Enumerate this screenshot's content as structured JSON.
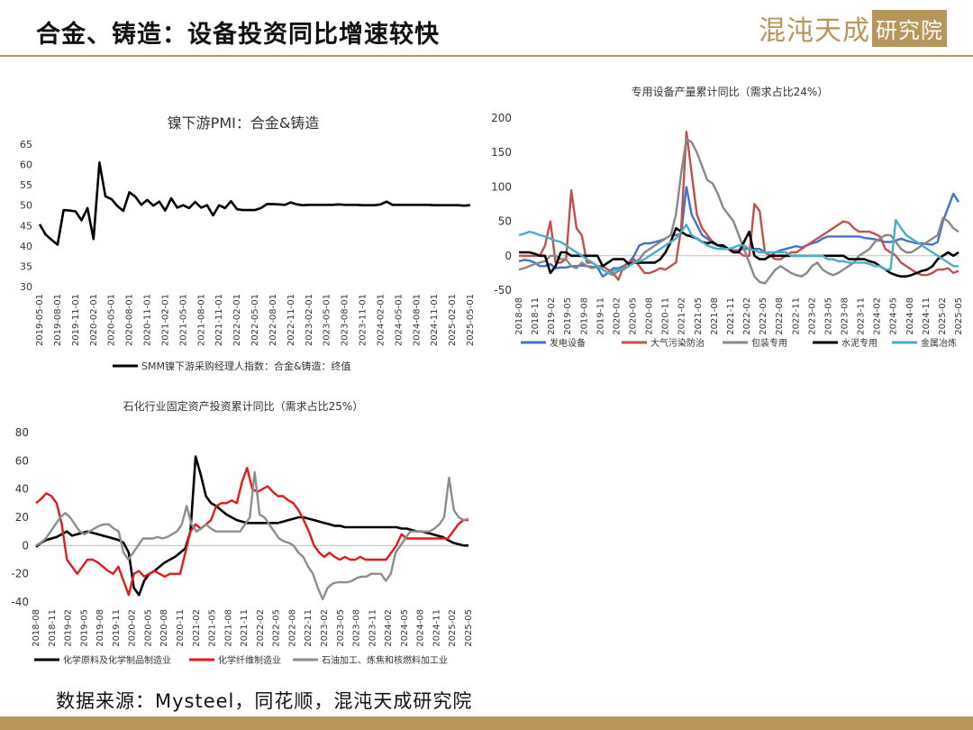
{
  "slide_title": "合金、铸造：设备投资同比增速较快",
  "logo": {
    "main": "混沌天成",
    "box": "研究院"
  },
  "source": "数据来源：Mysteel，同花顺，混沌天成研究院",
  "colors": {
    "gold": "#b8965a"
  },
  "chart_data": [
    {
      "type": "line",
      "title": "镍下游PMI：合金&铸造",
      "ylim": [
        30,
        65
      ],
      "yticks": [
        30,
        35,
        40,
        45,
        50,
        55,
        60,
        65
      ],
      "xticks": [
        "2019-05-01",
        "2019-08-01",
        "2019-11-01",
        "2020-02-01",
        "2020-05-01",
        "2020-08-01",
        "2020-11-01",
        "2021-02-01",
        "2021-05-01",
        "2021-08-01",
        "2021-11-01",
        "2022-02-01",
        "2022-05-01",
        "2022-08-01",
        "2022-11-01",
        "2023-02-01",
        "2023-05-01",
        "2023-08-01",
        "2023-11-01",
        "2024-02-01",
        "2024-05-01",
        "2024-08-01",
        "2024-11-01",
        "2025-02-01",
        "2025-05-01"
      ],
      "x_start": "2019-05",
      "x_end": "2025-05",
      "series": [
        {
          "name": "SMM镍下游采购经理人指数：合金&铸造：终值",
          "color": "#000000",
          "values": [
            45.3,
            42.8,
            41.5,
            40.3,
            48.8,
            48.7,
            48.5,
            46.3,
            49.3,
            41.7,
            60.5,
            52.2,
            51.5,
            49.8,
            48.6,
            53.2,
            52.1,
            50.1,
            51.3,
            49.9,
            50.9,
            48.7,
            51.7,
            49.4,
            50.0,
            49.3,
            50.8,
            49.4,
            50.0,
            47.5,
            50.0,
            49.3,
            51.0,
            49.0,
            48.8,
            48.8,
            48.8,
            49.3,
            50.3,
            50.3,
            50.2,
            50.1,
            50.7,
            50.2,
            50.0,
            50.1,
            50.1,
            50.1,
            50.1,
            50.1,
            50.2,
            50.1,
            50.1,
            50.1,
            50.0,
            50.0,
            50.0,
            50.2,
            50.9,
            50.1,
            50.1,
            50.1,
            50.1,
            50.1,
            50.1,
            50.1,
            50.0,
            50.0,
            50.0,
            50.0,
            50.0,
            49.9,
            50.0
          ]
        }
      ],
      "legend_position": "bottom"
    },
    {
      "type": "line",
      "title": "专用设备产量累计同比（需求占比24%）",
      "ylim": [
        -50,
        200
      ],
      "yticks": [
        -50,
        0,
        50,
        100,
        150,
        200
      ],
      "xticks": [
        "2018-08",
        "2018-11",
        "2019-02",
        "2019-05",
        "2019-08",
        "2019-11",
        "2020-02",
        "2020-05",
        "2020-08",
        "2020-11",
        "2021-02",
        "2021-05",
        "2021-08",
        "2021-11",
        "2022-02",
        "2022-05",
        "2022-08",
        "2022-11",
        "2023-02",
        "2023-05",
        "2023-08",
        "2023-11",
        "2024-02",
        "2024-05",
        "2024-08",
        "2024-11",
        "2025-02",
        "2025-05"
      ],
      "x_start": "2018-08",
      "x_end": "2025-05",
      "series": [
        {
          "name": "发电设备",
          "color": "#4472c4",
          "values": [
            -8,
            -6,
            -7,
            -10,
            -15,
            -15,
            -12,
            -18,
            -17,
            -17,
            -15,
            -15,
            -14,
            -15,
            -16,
            -17,
            -30,
            -25,
            -18,
            -18,
            -15,
            -10,
            0,
            15,
            18,
            18,
            20,
            22,
            25,
            30,
            30,
            32,
            100,
            60,
            45,
            30,
            25,
            18,
            15,
            12,
            10,
            8,
            8,
            10,
            10,
            10,
            10,
            5,
            0,
            5,
            8,
            10,
            12,
            14,
            12,
            15,
            18,
            20,
            25,
            28,
            28,
            28,
            28,
            28,
            28,
            28,
            26,
            25,
            24,
            22,
            20,
            20,
            22,
            25,
            22,
            20,
            18,
            18,
            17,
            16,
            20,
            50,
            70,
            90,
            78
          ]
        },
        {
          "name": "大气污染防治",
          "color": "#c0504d",
          "values": [
            0,
            0,
            0,
            0,
            0,
            15,
            50,
            -10,
            -10,
            -5,
            95,
            40,
            30,
            -10,
            -10,
            -15,
            -15,
            -20,
            -25,
            -35,
            -15,
            -10,
            -5,
            -15,
            -25,
            -25,
            -22,
            -18,
            -20,
            -15,
            -10,
            40,
            180,
            120,
            60,
            40,
            30,
            20,
            15,
            15,
            10,
            8,
            5,
            0,
            0,
            75,
            65,
            5,
            0,
            -5,
            -5,
            0,
            5,
            5,
            10,
            15,
            20,
            25,
            30,
            35,
            40,
            45,
            50,
            48,
            40,
            35,
            35,
            35,
            32,
            28,
            10,
            5,
            0,
            -10,
            -15,
            -20,
            -25,
            -28,
            -28,
            -25,
            -20,
            -20,
            -18,
            -25,
            -22
          ]
        },
        {
          "name": "包装专用",
          "color": "#888888",
          "values": [
            -20,
            -18,
            -15,
            -12,
            -10,
            -8,
            0,
            0,
            -5,
            -5,
            -15,
            -18,
            -10,
            -15,
            -18,
            -15,
            -20,
            -25,
            -28,
            -22,
            -20,
            -15,
            -10,
            -5,
            5,
            10,
            15,
            20,
            25,
            30,
            60,
            120,
            170,
            165,
            150,
            130,
            110,
            105,
            90,
            70,
            60,
            50,
            30,
            10,
            -10,
            -30,
            -38,
            -40,
            -30,
            -20,
            -15,
            -20,
            -25,
            -28,
            -30,
            -25,
            -15,
            -10,
            -20,
            -25,
            -28,
            -25,
            -20,
            -15,
            -10,
            0,
            5,
            10,
            20,
            25,
            30,
            30,
            20,
            10,
            5,
            5,
            10,
            15,
            20,
            25,
            30,
            55,
            50,
            40,
            35
          ]
        },
        {
          "name": "水泥专用",
          "color": "#000000",
          "values": [
            5,
            5,
            5,
            3,
            0,
            0,
            -25,
            -15,
            5,
            5,
            0,
            0,
            0,
            0,
            0,
            0,
            -15,
            -10,
            -5,
            -5,
            -5,
            -12,
            -10,
            -10,
            -10,
            -10,
            -10,
            -5,
            5,
            20,
            40,
            35,
            30,
            28,
            25,
            20,
            18,
            20,
            15,
            15,
            10,
            5,
            5,
            20,
            35,
            0,
            -5,
            -5,
            0,
            0,
            0,
            0,
            0,
            0,
            0,
            0,
            0,
            0,
            0,
            0,
            0,
            0,
            0,
            -5,
            -5,
            -5,
            -5,
            -8,
            -10,
            -15,
            -20,
            -25,
            -28,
            -30,
            -30,
            -28,
            -25,
            -22,
            -20,
            -15,
            -5,
            0,
            5,
            0,
            5
          ]
        },
        {
          "name": "金属冶炼",
          "color": "#4bacc6",
          "values": [
            30,
            32,
            35,
            33,
            30,
            28,
            25,
            22,
            20,
            15,
            10,
            5,
            0,
            -5,
            -10,
            -15,
            -20,
            -25,
            -22,
            -20,
            -18,
            -15,
            -10,
            -8,
            -5,
            0,
            5,
            10,
            15,
            20,
            25,
            35,
            45,
            30,
            25,
            20,
            15,
            12,
            10,
            10,
            10,
            12,
            15,
            15,
            10,
            8,
            5,
            5,
            5,
            5,
            5,
            5,
            0,
            0,
            0,
            0,
            0,
            0,
            0,
            -5,
            -5,
            -8,
            -8,
            -10,
            -10,
            -10,
            -10,
            -12,
            -15,
            -15,
            -20,
            -20,
            52,
            40,
            30,
            25,
            20,
            15,
            10,
            5,
            0,
            -5,
            -10,
            -15,
            -15
          ]
        }
      ],
      "legend_position": "bottom"
    },
    {
      "type": "line",
      "title": "石化行业固定资产投资累计同比（需求占比25%）",
      "ylim": [
        -40,
        80
      ],
      "yticks": [
        -40,
        -20,
        0,
        20,
        40,
        60,
        80
      ],
      "xticks": [
        "2018-08",
        "2018-11",
        "2019-02",
        "2019-05",
        "2019-08",
        "2019-11",
        "2020-02",
        "2020-05",
        "2020-08",
        "2020-11",
        "2021-02",
        "2021-05",
        "2021-08",
        "2021-11",
        "2022-02",
        "2022-05",
        "2022-08",
        "2022-11",
        "2023-02",
        "2023-05",
        "2023-08",
        "2023-11",
        "2024-02",
        "2024-05",
        "2024-08",
        "2024-11",
        "2025-02",
        "2025-05"
      ],
      "x_start": "2018-08",
      "x_end": "2025-05",
      "series": [
        {
          "name": "化学原料及化学制品制造业",
          "color": "#000000",
          "values": [
            -1,
            2,
            4,
            5,
            6,
            8,
            10,
            7,
            8,
            9,
            10,
            9,
            8,
            7,
            6,
            5,
            4,
            2,
            -5,
            -30,
            -35,
            -25,
            -20,
            -18,
            -15,
            -12,
            -10,
            -8,
            -5,
            -2,
            10,
            63,
            50,
            35,
            30,
            28,
            25,
            22,
            20,
            18,
            17,
            16,
            16,
            16,
            16,
            16,
            16,
            16,
            17,
            18,
            19,
            20,
            20,
            19,
            18,
            17,
            16,
            15,
            14,
            14,
            13,
            13,
            13,
            13,
            13,
            13,
            13,
            13,
            13,
            13,
            13,
            12,
            12,
            11,
            10,
            10,
            9,
            8,
            7,
            6,
            4,
            2,
            1,
            0,
            0
          ]
        },
        {
          "name": "化学纤维制造业",
          "color": "#e31a1c",
          "values": [
            30,
            33,
            37,
            35,
            30,
            15,
            -10,
            -15,
            -20,
            -15,
            -10,
            -10,
            -12,
            -15,
            -18,
            -20,
            -15,
            -25,
            -35,
            -20,
            -18,
            -22,
            -20,
            -18,
            -20,
            -22,
            -20,
            -20,
            -20,
            -5,
            10,
            15,
            12,
            15,
            18,
            28,
            30,
            30,
            32,
            30,
            45,
            55,
            40,
            38,
            40,
            42,
            38,
            35,
            35,
            32,
            30,
            25,
            18,
            10,
            0,
            -5,
            -8,
            -5,
            -8,
            -10,
            -8,
            -10,
            -10,
            -8,
            -10,
            -10,
            -10,
            -10,
            -10,
            -5,
            0,
            8,
            5,
            5,
            5,
            5,
            5,
            5,
            5,
            5,
            5,
            10,
            15,
            18,
            18
          ]
        },
        {
          "name": "石油加工、炼焦和核燃料加工业",
          "color": "#8c8c8c",
          "values": [
            0,
            2,
            5,
            10,
            15,
            20,
            23,
            20,
            15,
            10,
            8,
            10,
            12,
            14,
            15,
            15,
            12,
            10,
            -5,
            -10,
            -5,
            0,
            5,
            5,
            5,
            6,
            5,
            6,
            8,
            10,
            15,
            28,
            15,
            10,
            12,
            15,
            12,
            10,
            10,
            10,
            10,
            10,
            10,
            15,
            20,
            52,
            22,
            20,
            15,
            10,
            5,
            3,
            2,
            0,
            -5,
            -8,
            -15,
            -20,
            -30,
            -38,
            -30,
            -27,
            -26,
            -26,
            -26,
            -25,
            -23,
            -22,
            -22,
            -20,
            -20,
            -20,
            -25,
            -20,
            -5,
            0,
            5,
            10,
            10,
            10,
            10,
            10,
            12,
            15,
            20,
            48,
            25,
            20,
            18,
            19
          ]
        }
      ],
      "legend_position": "bottom"
    }
  ]
}
